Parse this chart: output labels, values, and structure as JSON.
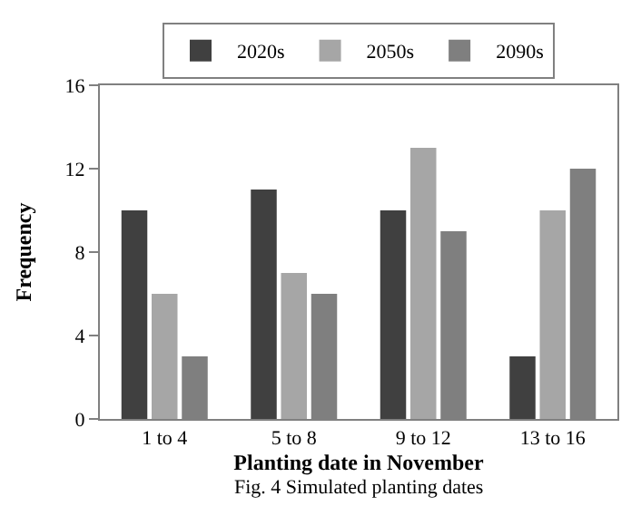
{
  "chart_data": {
    "type": "bar",
    "categories": [
      "1 to 4",
      "5 to 8",
      "9 to 12",
      "13 to 16"
    ],
    "series": [
      {
        "name": "2020s",
        "color": "#404040",
        "values": [
          10,
          11,
          10,
          3
        ]
      },
      {
        "name": "2050s",
        "color": "#a6a6a6",
        "values": [
          6,
          7,
          13,
          10
        ]
      },
      {
        "name": "2090s",
        "color": "#7f7f7f",
        "values": [
          3,
          6,
          9,
          12
        ]
      }
    ],
    "xlabel": "Planting date in November",
    "ylabel": "Frequency",
    "ylim": [
      0,
      16
    ],
    "yticks": [
      0,
      4,
      8,
      12,
      16
    ],
    "grid": false,
    "legend": "top",
    "annotations": [
      "Fig. 4 Simulated planting dates"
    ]
  }
}
